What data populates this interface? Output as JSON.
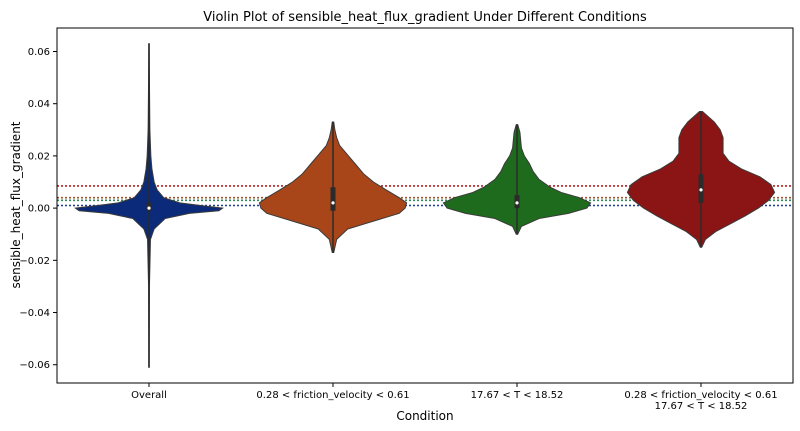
{
  "chart_data": {
    "type": "violin",
    "title": "Violin Plot of sensible_heat_flux_gradient Under Different Conditions",
    "xlabel": "Condition",
    "ylabel": "sensible_heat_flux_gradient",
    "ylim": [
      -0.067,
      0.069
    ],
    "yticks": [
      -0.06,
      -0.04,
      -0.02,
      0.0,
      0.02,
      0.04,
      0.06
    ],
    "ytick_labels": [
      "−0.06",
      "−0.04",
      "−0.02",
      "0.00",
      "0.02",
      "0.04",
      "0.06"
    ],
    "categories": [
      {
        "lines": [
          "Overall"
        ]
      },
      {
        "lines": [
          "0.28 < friction_velocity < 0.61"
        ]
      },
      {
        "lines": [
          "17.67 < T < 18.52"
        ]
      },
      {
        "lines": [
          "0.28 < friction_velocity < 0.61",
          "17.67 < T < 18.52"
        ]
      }
    ],
    "series": [
      {
        "name": "Overall",
        "color": "#0b2a7a",
        "min": -0.061,
        "max": 0.063,
        "q1": -0.001,
        "median": 0.0,
        "q3": 0.002,
        "profile": [
          [
            -0.061,
            0.003
          ],
          [
            -0.03,
            0.006
          ],
          [
            -0.012,
            0.02
          ],
          [
            -0.008,
            0.07
          ],
          [
            -0.004,
            0.22
          ],
          [
            -0.002,
            0.55
          ],
          [
            -0.001,
            0.95
          ],
          [
            0.0,
            1.0
          ],
          [
            0.001,
            0.7
          ],
          [
            0.002,
            0.42
          ],
          [
            0.004,
            0.2
          ],
          [
            0.007,
            0.11
          ],
          [
            0.01,
            0.07
          ],
          [
            0.015,
            0.04
          ],
          [
            0.02,
            0.025
          ],
          [
            0.03,
            0.012
          ],
          [
            0.045,
            0.007
          ],
          [
            0.063,
            0.003
          ]
        ]
      },
      {
        "name": "0.28 < friction_velocity < 0.61",
        "color": "#a8461a",
        "min": -0.017,
        "max": 0.033,
        "q1": -0.001,
        "median": 0.002,
        "q3": 0.008,
        "profile": [
          [
            -0.017,
            0.01
          ],
          [
            -0.012,
            0.05
          ],
          [
            -0.008,
            0.2
          ],
          [
            -0.005,
            0.55
          ],
          [
            -0.002,
            0.9
          ],
          [
            0.0,
            0.98
          ],
          [
            0.002,
            1.0
          ],
          [
            0.004,
            0.9
          ],
          [
            0.007,
            0.72
          ],
          [
            0.01,
            0.55
          ],
          [
            0.013,
            0.42
          ],
          [
            0.017,
            0.3
          ],
          [
            0.021,
            0.18
          ],
          [
            0.024,
            0.09
          ],
          [
            0.027,
            0.05
          ],
          [
            0.03,
            0.025
          ],
          [
            0.033,
            0.01
          ]
        ]
      },
      {
        "name": "17.67 < T < 18.52",
        "color": "#1e6b1e",
        "min": -0.01,
        "max": 0.032,
        "q1": 0.0,
        "median": 0.002,
        "q3": 0.005,
        "profile": [
          [
            -0.01,
            0.01
          ],
          [
            -0.007,
            0.06
          ],
          [
            -0.004,
            0.3
          ],
          [
            -0.002,
            0.7
          ],
          [
            0.0,
            0.95
          ],
          [
            0.002,
            1.0
          ],
          [
            0.004,
            0.85
          ],
          [
            0.006,
            0.6
          ],
          [
            0.008,
            0.45
          ],
          [
            0.011,
            0.3
          ],
          [
            0.014,
            0.22
          ],
          [
            0.017,
            0.17
          ],
          [
            0.02,
            0.1
          ],
          [
            0.023,
            0.06
          ],
          [
            0.026,
            0.05
          ],
          [
            0.029,
            0.04
          ],
          [
            0.032,
            0.01
          ]
        ]
      },
      {
        "name": "0.28 < friction_velocity < 0.61 & 17.67 < T < 18.52",
        "color": "#8b1414",
        "min": -0.015,
        "max": 0.037,
        "q1": 0.002,
        "median": 0.007,
        "q3": 0.013,
        "profile": [
          [
            -0.015,
            0.01
          ],
          [
            -0.012,
            0.06
          ],
          [
            -0.009,
            0.2
          ],
          [
            -0.006,
            0.4
          ],
          [
            -0.003,
            0.6
          ],
          [
            0.0,
            0.78
          ],
          [
            0.003,
            0.92
          ],
          [
            0.006,
            1.0
          ],
          [
            0.009,
            0.95
          ],
          [
            0.012,
            0.8
          ],
          [
            0.015,
            0.55
          ],
          [
            0.018,
            0.38
          ],
          [
            0.021,
            0.3
          ],
          [
            0.024,
            0.3
          ],
          [
            0.027,
            0.3
          ],
          [
            0.03,
            0.26
          ],
          [
            0.033,
            0.18
          ],
          [
            0.035,
            0.1
          ],
          [
            0.037,
            0.02
          ]
        ]
      }
    ],
    "hlines": [
      {
        "y": 0.0085,
        "color": "#b22222",
        "style": "dotted"
      },
      {
        "y": 0.004,
        "color": "#a0522d",
        "style": "dotted"
      },
      {
        "y": 0.003,
        "color": "#2e8b57",
        "style": "dotted"
      },
      {
        "y": 0.001,
        "color": "#1f3a93",
        "style": "dotted"
      }
    ],
    "grid": false,
    "legend": "none"
  }
}
